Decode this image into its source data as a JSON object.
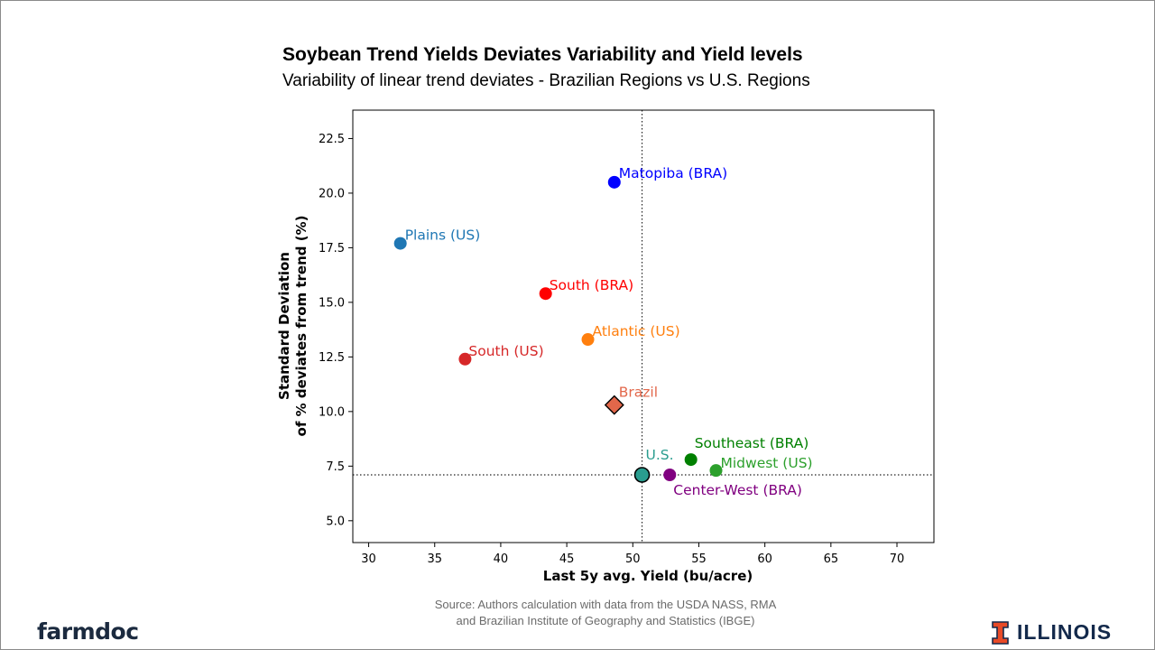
{
  "slide": {
    "title": "Soybean Trend Yields Deviates Variability and Yield levels",
    "subtitle": "Variability of linear trend deviates - Brazilian Regions vs U.S. Regions",
    "source_line1": "Source: Authors calculation with data from the USDA NASS, RMA",
    "source_line2": "and Brazilian Institute of Geography and Statistics (IBGE)",
    "logo_left": "farmdoc",
    "logo_right": "ILLINOIS",
    "colors": {
      "logo_left": "#1b2a3f",
      "illinois_orange": "#e84a27",
      "illinois_blue": "#13294b"
    }
  },
  "chart_data": {
    "type": "scatter",
    "xlabel": "Last 5y avg. Yield (bu/acre)",
    "ylabel": [
      "Standard Deviation",
      "of % deviates from trend (%)"
    ],
    "xlim": [
      28.8,
      72.8
    ],
    "ylim": [
      4.0,
      23.8
    ],
    "xticks": [
      30,
      35,
      40,
      45,
      50,
      55,
      60,
      65,
      70
    ],
    "yticks": [
      5.0,
      7.5,
      10.0,
      12.5,
      15.0,
      17.5,
      20.0,
      22.5
    ],
    "reference_lines": {
      "x": 50.7,
      "y": 7.1,
      "style": "dotted"
    },
    "grid": false,
    "points": [
      {
        "label": "Matopiba (BRA)",
        "x": 48.6,
        "y": 20.5,
        "color": "#0000ff",
        "marker": "circle"
      },
      {
        "label": "Plains (US)",
        "x": 32.4,
        "y": 17.7,
        "color": "#1f77b4",
        "marker": "circle"
      },
      {
        "label": "South (BRA)",
        "x": 43.4,
        "y": 15.4,
        "color": "#ff0000",
        "marker": "circle"
      },
      {
        "label": "Atlantic (US)",
        "x": 46.6,
        "y": 13.3,
        "color": "#ff7f0e",
        "marker": "circle"
      },
      {
        "label": "South (US)",
        "x": 37.3,
        "y": 12.4,
        "color": "#d62728",
        "marker": "circle"
      },
      {
        "label": "Brazil",
        "x": 48.6,
        "y": 10.3,
        "color": "#e2674a",
        "marker": "diamond"
      },
      {
        "label": "Southeast (BRA)",
        "x": 54.4,
        "y": 7.8,
        "color": "#008000",
        "marker": "circle"
      },
      {
        "label": "Midwest (US)",
        "x": 56.3,
        "y": 7.3,
        "color": "#2ca02c",
        "marker": "circle"
      },
      {
        "label": "U.S.",
        "x": 50.7,
        "y": 7.1,
        "color": "#2a9d8f",
        "marker": "circle-outlined"
      },
      {
        "label": "Center-West (BRA)",
        "x": 52.8,
        "y": 7.1,
        "color": "#800080",
        "marker": "circle"
      }
    ]
  }
}
